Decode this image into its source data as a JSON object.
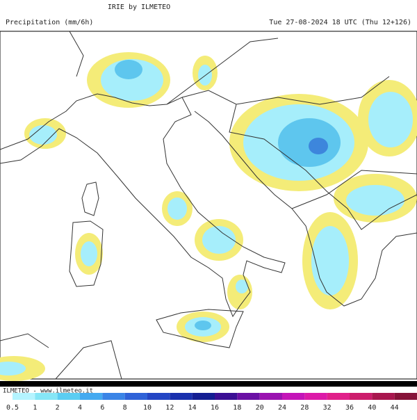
{
  "header": {
    "title": "IRIE by ILMETEO",
    "field": "Precipitation (mm/6h)",
    "time": "Tue 27-08-2024 18 UTC (Thu 12+126)"
  },
  "footer": {
    "credit": "ILMETEO - www.ilmeteo.it"
  },
  "legend": {
    "ticks": [
      0.5,
      1,
      2,
      4,
      6,
      8,
      10,
      12,
      14,
      16,
      18,
      20,
      24,
      28,
      32,
      36,
      40,
      44
    ],
    "colors": [
      "#b4f4ff",
      "#86e6f6",
      "#5ccdf2",
      "#45aaf0",
      "#3a84e6",
      "#2f62d8",
      "#2445c4",
      "#1a30ad",
      "#141e92",
      "#3b0f94",
      "#6a10a4",
      "#9a12b0",
      "#c414b8",
      "#dc1aa8",
      "#e0208a",
      "#cc1c6c",
      "#a8164e",
      "#861238"
    ]
  }
}
